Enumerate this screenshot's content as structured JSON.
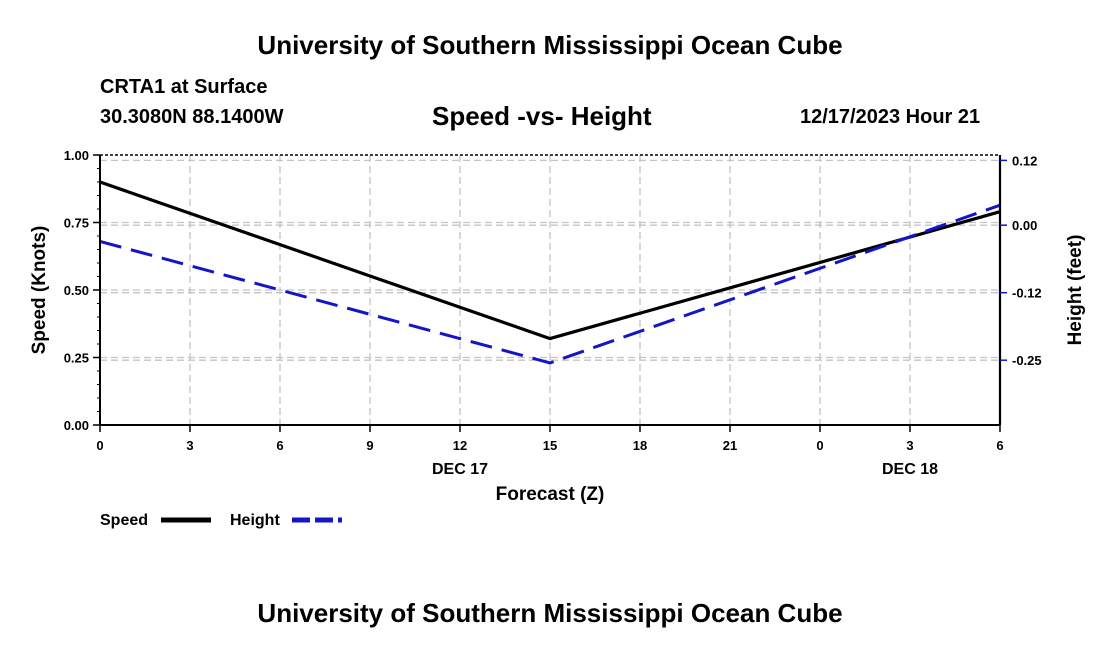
{
  "header": {
    "title": "University of Southern Mississippi Ocean Cube",
    "station": "CRTA1 at Surface",
    "coords": "30.3080N  88.1400W",
    "subtitle": "Speed -vs- Height",
    "datetime": "12/17/2023 Hour 21"
  },
  "footer": {
    "title": "University of Southern Mississippi Ocean Cube"
  },
  "chart_data": {
    "type": "line",
    "title": "Speed -vs- Height",
    "xlabel": "Forecast (Z)",
    "ylabel": "Speed (Knots)",
    "y2label": "Height (feet)",
    "x_hours": [
      0,
      3,
      6,
      9,
      12,
      15,
      18,
      21,
      24,
      27,
      30
    ],
    "x_ticklabels": [
      "0",
      "3",
      "6",
      "9",
      "12",
      "15",
      "18",
      "21",
      "0",
      "3",
      "6"
    ],
    "date_labels": [
      {
        "hour": 12,
        "label": "DEC 17"
      },
      {
        "hour": 27,
        "label": "DEC 18"
      }
    ],
    "ylim": [
      0,
      1
    ],
    "y_ticks": [
      0,
      0.25,
      0.5,
      0.75,
      1
    ],
    "y_ticklabels": [
      "0.00",
      "0.25",
      "0.50",
      "0.75",
      "1.00"
    ],
    "y2lim": [
      -0.37,
      0.13
    ],
    "y2_ticks": [
      -0.25,
      -0.125,
      0,
      0.12
    ],
    "y2_ticklabels": [
      "-0.25",
      "-0.12",
      "0.00",
      "0.12"
    ],
    "grid": true,
    "series": [
      {
        "name": "Speed",
        "axis": "left",
        "color": "#000000",
        "style": "solid",
        "points": [
          [
            0,
            0.9
          ],
          [
            15,
            0.32
          ],
          [
            30,
            0.79
          ]
        ]
      },
      {
        "name": "Height",
        "axis": "right",
        "color": "#1515c8",
        "style": "dashed",
        "points": [
          [
            0,
            -0.03
          ],
          [
            15,
            -0.255
          ],
          [
            30,
            0.037
          ]
        ]
      }
    ],
    "legend": [
      {
        "label": "Speed",
        "color": "#000000",
        "style": "solid"
      },
      {
        "label": "Height",
        "color": "#1515c8",
        "style": "dashed"
      }
    ]
  }
}
